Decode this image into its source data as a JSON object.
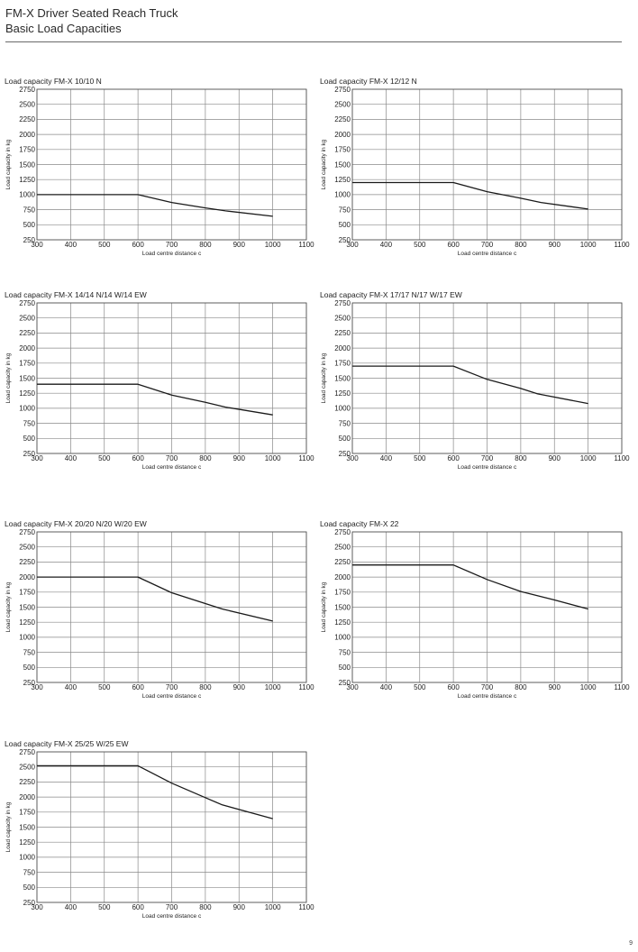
{
  "header": {
    "line1": "FM-X Driver Seated Reach Truck",
    "line2": "Basic Load Capacities"
  },
  "page_number": "9",
  "colors": {
    "grid": "#8a8a8a",
    "line": "#1a1a1a",
    "text": "#222222"
  },
  "chart_data": [
    {
      "type": "line",
      "title": "Load capacity FM-X 10/10 N",
      "xlabel": "Load centre distance c",
      "ylabel": "Load capacity in kg",
      "xlim": [
        300,
        1100
      ],
      "ylim": [
        250,
        2750
      ],
      "xticks": [
        300,
        400,
        500,
        600,
        700,
        800,
        900,
        1000,
        1100
      ],
      "yticks": [
        250,
        500,
        750,
        1000,
        1250,
        1500,
        1750,
        2000,
        2250,
        2500,
        2750
      ],
      "grid": true,
      "series": [
        {
          "x": [
            300,
            600,
            700,
            800,
            860,
            1000
          ],
          "y": [
            1000,
            1000,
            870,
            780,
            730,
            640
          ]
        }
      ]
    },
    {
      "type": "line",
      "title": "Load capacity FM-X 12/12 N",
      "xlabel": "Load centre distance c",
      "ylabel": "Load capacity in kg",
      "xlim": [
        300,
        1100
      ],
      "ylim": [
        250,
        2750
      ],
      "xticks": [
        300,
        400,
        500,
        600,
        700,
        800,
        900,
        1000,
        1100
      ],
      "yticks": [
        250,
        500,
        750,
        1000,
        1250,
        1500,
        1750,
        2000,
        2250,
        2500,
        2750
      ],
      "grid": true,
      "series": [
        {
          "x": [
            300,
            600,
            700,
            800,
            860,
            1000
          ],
          "y": [
            1200,
            1200,
            1050,
            940,
            870,
            760
          ]
        }
      ]
    },
    {
      "type": "line",
      "title": "Load capacity FM-X 14/14 N/14 W/14 EW",
      "xlabel": "Load centre distance c",
      "ylabel": "Load capacity in kg",
      "xlim": [
        300,
        1100
      ],
      "ylim": [
        250,
        2750
      ],
      "xticks": [
        300,
        400,
        500,
        600,
        700,
        800,
        900,
        1000,
        1100
      ],
      "yticks": [
        250,
        500,
        750,
        1000,
        1250,
        1500,
        1750,
        2000,
        2250,
        2500,
        2750
      ],
      "grid": true,
      "series": [
        {
          "x": [
            300,
            600,
            700,
            800,
            860,
            1000
          ],
          "y": [
            1400,
            1400,
            1220,
            1100,
            1020,
            890
          ]
        }
      ]
    },
    {
      "type": "line",
      "title": "Load capacity FM-X 17/17 N/17 W/17 EW",
      "xlabel": "Load centre distance c",
      "ylabel": "Load capacity in kg",
      "xlim": [
        300,
        1100
      ],
      "ylim": [
        250,
        2750
      ],
      "xticks": [
        300,
        400,
        500,
        600,
        700,
        800,
        900,
        1000,
        1100
      ],
      "yticks": [
        250,
        500,
        750,
        1000,
        1250,
        1500,
        1750,
        2000,
        2250,
        2500,
        2750
      ],
      "grid": true,
      "series": [
        {
          "x": [
            300,
            600,
            700,
            800,
            850,
            1000
          ],
          "y": [
            1700,
            1700,
            1480,
            1330,
            1240,
            1080
          ]
        }
      ]
    },
    {
      "type": "line",
      "title": "Load capacity FM-X 20/20 N/20 W/20 EW",
      "xlabel": "Load centre distance c",
      "ylabel": "Load capacity in kg",
      "xlim": [
        300,
        1100
      ],
      "ylim": [
        250,
        2750
      ],
      "xticks": [
        300,
        400,
        500,
        600,
        700,
        800,
        900,
        1000,
        1100
      ],
      "yticks": [
        250,
        500,
        750,
        1000,
        1250,
        1500,
        1750,
        2000,
        2250,
        2500,
        2750
      ],
      "grid": true,
      "series": [
        {
          "x": [
            300,
            600,
            700,
            800,
            850,
            1000
          ],
          "y": [
            2000,
            2000,
            1740,
            1560,
            1470,
            1270
          ]
        }
      ]
    },
    {
      "type": "line",
      "title": "Load capacity FM-X 22",
      "xlabel": "Load centre distance c",
      "ylabel": "Load capacity in kg",
      "xlim": [
        300,
        1100
      ],
      "ylim": [
        250,
        2750
      ],
      "xticks": [
        300,
        400,
        500,
        600,
        700,
        800,
        900,
        1000,
        1100
      ],
      "yticks": [
        250,
        500,
        750,
        1000,
        1250,
        1500,
        1750,
        2000,
        2250,
        2500,
        2750
      ],
      "grid": true,
      "series": [
        {
          "x": [
            300,
            600,
            700,
            800,
            900,
            1000
          ],
          "y": [
            2200,
            2200,
            1960,
            1760,
            1620,
            1470
          ]
        }
      ]
    },
    {
      "type": "line",
      "title": "Load capacity FM-X 25/25 W/25 EW",
      "xlabel": "Load centre distance c",
      "ylabel": "Load capacity in kg",
      "xlim": [
        300,
        1100
      ],
      "ylim": [
        250,
        2750
      ],
      "xticks": [
        300,
        400,
        500,
        600,
        700,
        800,
        900,
        1000,
        1100
      ],
      "yticks": [
        250,
        500,
        750,
        1000,
        1250,
        1500,
        1750,
        2000,
        2250,
        2500,
        2750
      ],
      "grid": true,
      "series": [
        {
          "x": [
            300,
            600,
            700,
            800,
            850,
            1000
          ],
          "y": [
            2520,
            2520,
            2230,
            1990,
            1870,
            1640
          ]
        }
      ]
    }
  ]
}
